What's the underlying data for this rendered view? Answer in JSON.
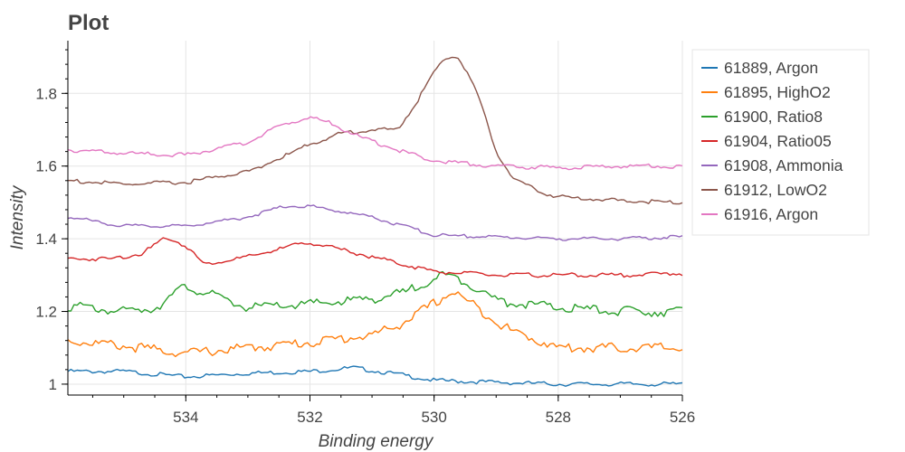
{
  "chart_data": {
    "type": "line",
    "title": "Plot",
    "xlabel": "Binding energy",
    "ylabel": "Intensity",
    "xlim": [
      535.9,
      526.0
    ],
    "ylim": [
      0.97,
      1.945
    ],
    "x_reversed": true,
    "x_ticks": [
      534,
      532,
      530,
      528,
      526
    ],
    "y_ticks": [
      1,
      1.2,
      1.4,
      1.6,
      1.8
    ],
    "x_tick_labels": [
      "534",
      "532",
      "530",
      "528",
      "526"
    ],
    "y_tick_labels": [
      "1",
      "1.2",
      "1.4",
      "1.6",
      "1.8"
    ],
    "grid": true,
    "legend_position": "right",
    "series": [
      {
        "name": "61889, Argon",
        "color": "#1f77b4",
        "points": [
          [
            535.9,
            1.035
          ],
          [
            535.0,
            1.035
          ],
          [
            534.0,
            1.02
          ],
          [
            533.0,
            1.03
          ],
          [
            532.0,
            1.035
          ],
          [
            531.3,
            1.045
          ],
          [
            530.5,
            1.025
          ],
          [
            530.0,
            1.01
          ],
          [
            529.0,
            1.005
          ],
          [
            528.0,
            1.0
          ],
          [
            527.0,
            1.0
          ],
          [
            526.0,
            1.0
          ]
        ]
      },
      {
        "name": "61895, HighO2",
        "color": "#ff7f0e",
        "points": [
          [
            535.9,
            1.12
          ],
          [
            535.0,
            1.105
          ],
          [
            534.0,
            1.085
          ],
          [
            533.0,
            1.1
          ],
          [
            532.0,
            1.115
          ],
          [
            531.0,
            1.135
          ],
          [
            530.6,
            1.16
          ],
          [
            530.2,
            1.2
          ],
          [
            529.7,
            1.255
          ],
          [
            529.3,
            1.21
          ],
          [
            528.8,
            1.15
          ],
          [
            528.0,
            1.1
          ],
          [
            527.0,
            1.1
          ],
          [
            526.0,
            1.1
          ]
        ]
      },
      {
        "name": "61900, Ratio8",
        "color": "#2ca02c",
        "points": [
          [
            535.9,
            1.215
          ],
          [
            535.0,
            1.2
          ],
          [
            534.5,
            1.21
          ],
          [
            534.0,
            1.27
          ],
          [
            533.5,
            1.24
          ],
          [
            533.0,
            1.21
          ],
          [
            532.0,
            1.22
          ],
          [
            531.0,
            1.235
          ],
          [
            530.5,
            1.25
          ],
          [
            529.9,
            1.3
          ],
          [
            529.5,
            1.285
          ],
          [
            529.0,
            1.23
          ],
          [
            528.0,
            1.21
          ],
          [
            527.0,
            1.2
          ],
          [
            526.0,
            1.2
          ]
        ]
      },
      {
        "name": "61904, Ratio05",
        "color": "#d62728",
        "points": [
          [
            535.9,
            1.345
          ],
          [
            535.2,
            1.345
          ],
          [
            534.7,
            1.36
          ],
          [
            534.3,
            1.405
          ],
          [
            534.0,
            1.38
          ],
          [
            533.7,
            1.33
          ],
          [
            533.0,
            1.35
          ],
          [
            532.3,
            1.38
          ],
          [
            532.0,
            1.39
          ],
          [
            531.0,
            1.35
          ],
          [
            530.0,
            1.31
          ],
          [
            529.0,
            1.3
          ],
          [
            528.0,
            1.3
          ],
          [
            527.0,
            1.3
          ],
          [
            526.0,
            1.305
          ]
        ]
      },
      {
        "name": "61908, Ammonia",
        "color": "#9467bd",
        "points": [
          [
            535.9,
            1.46
          ],
          [
            535.0,
            1.435
          ],
          [
            534.0,
            1.435
          ],
          [
            533.0,
            1.46
          ],
          [
            532.4,
            1.49
          ],
          [
            532.0,
            1.49
          ],
          [
            531.0,
            1.46
          ],
          [
            530.0,
            1.41
          ],
          [
            529.0,
            1.405
          ],
          [
            528.0,
            1.4
          ],
          [
            527.0,
            1.4
          ],
          [
            526.0,
            1.405
          ]
        ]
      },
      {
        "name": "61912, LowO2",
        "color": "#8c564b",
        "points": [
          [
            535.9,
            1.56
          ],
          [
            535.0,
            1.55
          ],
          [
            534.0,
            1.555
          ],
          [
            533.0,
            1.585
          ],
          [
            532.5,
            1.62
          ],
          [
            532.0,
            1.66
          ],
          [
            531.5,
            1.69
          ],
          [
            531.0,
            1.7
          ],
          [
            530.6,
            1.7
          ],
          [
            530.3,
            1.77
          ],
          [
            530.0,
            1.86
          ],
          [
            529.8,
            1.9
          ],
          [
            529.6,
            1.9
          ],
          [
            529.3,
            1.8
          ],
          [
            529.0,
            1.64
          ],
          [
            528.7,
            1.56
          ],
          [
            528.3,
            1.53
          ],
          [
            528.0,
            1.515
          ],
          [
            527.0,
            1.505
          ],
          [
            526.0,
            1.5
          ]
        ]
      },
      {
        "name": "61916, Argon",
        "color": "#e377c2",
        "points": [
          [
            535.9,
            1.645
          ],
          [
            535.0,
            1.635
          ],
          [
            534.0,
            1.63
          ],
          [
            533.0,
            1.665
          ],
          [
            532.5,
            1.71
          ],
          [
            532.0,
            1.735
          ],
          [
            531.7,
            1.72
          ],
          [
            531.2,
            1.68
          ],
          [
            530.6,
            1.645
          ],
          [
            530.0,
            1.615
          ],
          [
            529.0,
            1.6
          ],
          [
            528.0,
            1.595
          ],
          [
            527.0,
            1.6
          ],
          [
            526.0,
            1.6
          ]
        ]
      }
    ]
  }
}
